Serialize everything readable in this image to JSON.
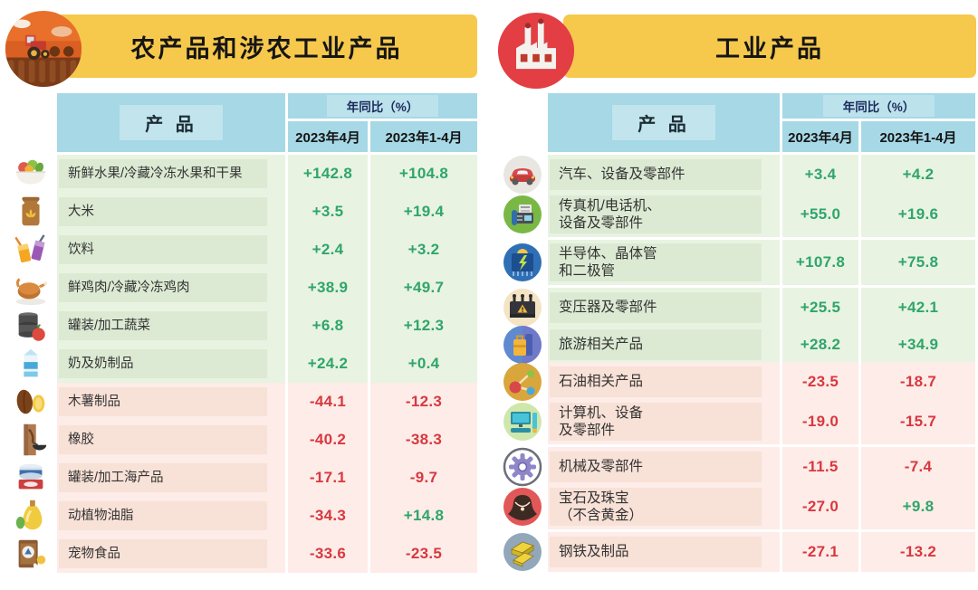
{
  "colors": {
    "banner_yellow": "#f6c94c",
    "table_header_blue": "#a6d8e6",
    "yoy_label_navy": "#1b2a5b",
    "positive_green": "#2fa669",
    "negative_red": "#d8383f",
    "positive_row_bg": "#e9f3e2",
    "positive_label_bg": "#dcead3",
    "negative_row_bg": "#fdece8",
    "negative_label_bg": "#f8e1d7"
  },
  "left_panel": {
    "badge_icon": "tractor-icon",
    "title": "农产品和涉农工业产品",
    "table": {
      "product_header": "产 品",
      "yoy_header": "年同比（%）",
      "col_apr": "2023年4月",
      "col_jan_apr": "2023年1-4月",
      "rows": [
        {
          "icon": "fruit-bowl-icon",
          "name": "新鲜水果/冷藏冷冻水果和干果",
          "apr": "+142.8",
          "jan_apr": "+104.8",
          "trend": "positive"
        },
        {
          "icon": "rice-sack-icon",
          "name": "大米",
          "apr": "+3.5",
          "jan_apr": "+19.4",
          "trend": "positive"
        },
        {
          "icon": "beverages-icon",
          "name": "饮料",
          "apr": "+2.4",
          "jan_apr": "+3.2",
          "trend": "positive"
        },
        {
          "icon": "chicken-icon",
          "name": "鲜鸡肉/冷藏冷冻鸡肉",
          "apr": "+38.9",
          "jan_apr": "+49.7",
          "trend": "positive"
        },
        {
          "icon": "canned-vegetables-icon",
          "name": "罐装/加工蔬菜",
          "apr": "+6.8",
          "jan_apr": "+12.3",
          "trend": "positive"
        },
        {
          "icon": "milk-icon",
          "name": "奶及奶制品",
          "apr": "+24.2",
          "jan_apr": "+0.4",
          "trend": "positive"
        },
        {
          "icon": "cassava-icon",
          "name": "木薯制品",
          "apr": "-44.1",
          "jan_apr": "-12.3",
          "trend": "negative"
        },
        {
          "icon": "rubber-icon",
          "name": "橡胶",
          "apr": "-40.2",
          "jan_apr": "-38.3",
          "trend": "negative"
        },
        {
          "icon": "canned-seafood-icon",
          "name": "罐装/加工海产品",
          "apr": "-17.1",
          "jan_apr": "-9.7",
          "trend": "negative"
        },
        {
          "icon": "oil-icon",
          "name": "动植物油脂",
          "apr": "-34.3",
          "jan_apr": "+14.8",
          "trend": "negative"
        },
        {
          "icon": "pet-food-icon",
          "name": "宠物食品",
          "apr": "-33.6",
          "jan_apr": "-23.5",
          "trend": "negative"
        }
      ]
    }
  },
  "right_panel": {
    "badge_icon": "factory-icon",
    "title": "工业产品",
    "table": {
      "product_header": "产 品",
      "yoy_header": "年同比（%）",
      "col_apr": "2023年4月",
      "col_jan_apr": "2023年1-4月",
      "rows": [
        {
          "icon": "car-icon",
          "name": "汽车、设备及零部件",
          "apr": "+3.4",
          "jan_apr": "+4.2",
          "trend": "positive"
        },
        {
          "icon": "fax-phone-icon",
          "name": "传真机/电话机、\n设备及零部件",
          "apr": "+55.0",
          "jan_apr": "+19.6",
          "trend": "positive"
        },
        {
          "icon": "semiconductor-icon",
          "name": "半导体、晶体管\n和二极管",
          "apr": "+107.8",
          "jan_apr": "+75.8",
          "trend": "positive"
        },
        {
          "icon": "transformer-icon",
          "name": "变压器及零部件",
          "apr": "+25.5",
          "jan_apr": "+42.1",
          "trend": "positive"
        },
        {
          "icon": "travel-icon",
          "name": "旅游相关产品",
          "apr": "+28.2",
          "jan_apr": "+34.9",
          "trend": "positive"
        },
        {
          "icon": "petroleum-icon",
          "name": "石油相关产品",
          "apr": "-23.5",
          "jan_apr": "-18.7",
          "trend": "negative"
        },
        {
          "icon": "computer-icon",
          "name": "计算机、设备\n及零部件",
          "apr": "-19.0",
          "jan_apr": "-15.7",
          "trend": "negative"
        },
        {
          "icon": "machinery-icon",
          "name": "机械及零部件",
          "apr": "-11.5",
          "jan_apr": "-7.4",
          "trend": "negative"
        },
        {
          "icon": "jewelry-icon",
          "name": "宝石及珠宝\n（不含黄金）",
          "apr": "-27.0",
          "jan_apr": "+9.8",
          "trend": "negative"
        },
        {
          "icon": "steel-icon",
          "name": "钢铁及制品",
          "apr": "-27.1",
          "jan_apr": "-13.2",
          "trend": "negative"
        }
      ]
    }
  },
  "chart_data": [
    {
      "type": "table",
      "title": "农产品和涉农工业产品",
      "columns": [
        "产品",
        "年同比(%) 2023年4月",
        "年同比(%) 2023年1-4月"
      ],
      "rows": [
        [
          "新鲜水果/冷藏冷冻水果和干果",
          142.8,
          104.8
        ],
        [
          "大米",
          3.5,
          19.4
        ],
        [
          "饮料",
          2.4,
          3.2
        ],
        [
          "鲜鸡肉/冷藏冷冻鸡肉",
          38.9,
          49.7
        ],
        [
          "罐装/加工蔬菜",
          6.8,
          12.3
        ],
        [
          "奶及奶制品",
          24.2,
          0.4
        ],
        [
          "木薯制品",
          -44.1,
          -12.3
        ],
        [
          "橡胶",
          -40.2,
          -38.3
        ],
        [
          "罐装/加工海产品",
          -17.1,
          -9.7
        ],
        [
          "动植物油脂",
          -34.3,
          14.8
        ],
        [
          "宠物食品",
          -33.6,
          -23.5
        ]
      ]
    },
    {
      "type": "table",
      "title": "工业产品",
      "columns": [
        "产品",
        "年同比(%) 2023年4月",
        "年同比(%) 2023年1-4月"
      ],
      "rows": [
        [
          "汽车、设备及零部件",
          3.4,
          4.2
        ],
        [
          "传真机/电话机、设备及零部件",
          55.0,
          19.6
        ],
        [
          "半导体、晶体管和二极管",
          107.8,
          75.8
        ],
        [
          "变压器及零部件",
          25.5,
          42.1
        ],
        [
          "旅游相关产品",
          28.2,
          34.9
        ],
        [
          "石油相关产品",
          -23.5,
          -18.7
        ],
        [
          "计算机、设备及零部件",
          -19.0,
          -15.7
        ],
        [
          "机械及零部件",
          -11.5,
          -7.4
        ],
        [
          "宝石及珠宝（不含黄金）",
          -27.0,
          9.8
        ],
        [
          "钢铁及制品",
          -27.1,
          -13.2
        ]
      ]
    }
  ]
}
